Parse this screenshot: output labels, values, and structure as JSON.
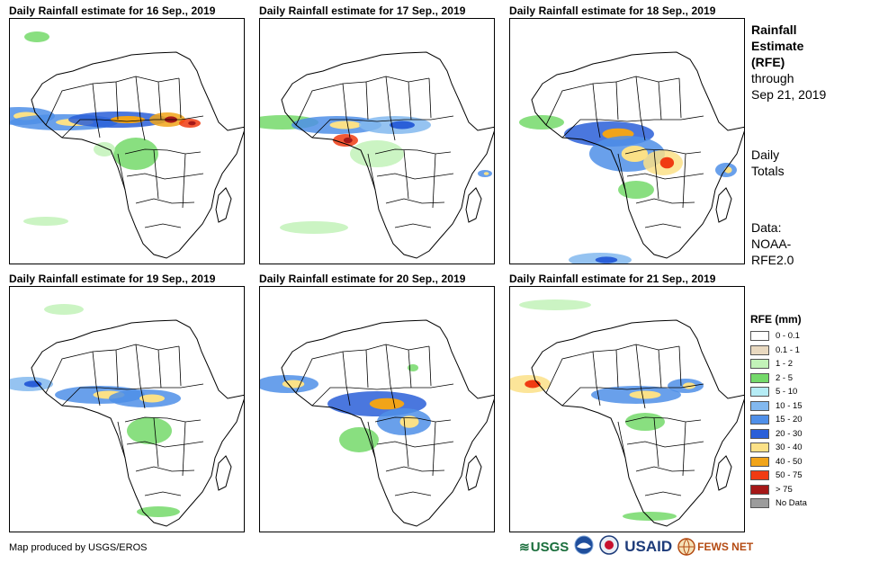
{
  "panels": [
    {
      "title": "Daily Rainfall estimate for 16 Sep., 2019"
    },
    {
      "title": "Daily Rainfall estimate for 17 Sep., 2019"
    },
    {
      "title": "Daily Rainfall estimate for 18 Sep., 2019"
    },
    {
      "title": "Daily Rainfall estimate for 19 Sep., 2019"
    },
    {
      "title": "Daily Rainfall estimate for 20 Sep., 2019"
    },
    {
      "title": "Daily Rainfall estimate for 21 Sep., 2019"
    }
  ],
  "side": {
    "title_1": "Rainfall",
    "title_2": "Estimate",
    "title_3": "(RFE)",
    "through": "through",
    "date": "Sep 21, 2019",
    "daily_1": "Daily",
    "daily_2": "Totals",
    "data_1": "Data:",
    "data_2": "NOAA-",
    "data_3": "RFE2.0"
  },
  "legend": {
    "title": "RFE (mm)",
    "items": [
      {
        "label": "0 - 0.1",
        "color": "#ffffff"
      },
      {
        "label": "0.1 - 1",
        "color": "#e9d9c0"
      },
      {
        "label": "1 - 2",
        "color": "#c2f2b8"
      },
      {
        "label": "2 - 5",
        "color": "#74d96a"
      },
      {
        "label": "5 - 10",
        "color": "#b5ecf5"
      },
      {
        "label": "10 - 15",
        "color": "#82b8ef"
      },
      {
        "label": "15 - 20",
        "color": "#4f8fe8"
      },
      {
        "label": "20 - 30",
        "color": "#2a5fd8"
      },
      {
        "label": "30 - 40",
        "color": "#fbe187"
      },
      {
        "label": "40 - 50",
        "color": "#f1a419"
      },
      {
        "label": "50 - 75",
        "color": "#f03b12"
      },
      {
        "label": "> 75",
        "color": "#a51818"
      },
      {
        "label": "No Data",
        "color": "#9c9c9c"
      }
    ]
  },
  "credit": "Map produced by USGS/EROS",
  "logos": {
    "usgs": "USGS",
    "usaid": "USAID",
    "fewsnet": "FEWS NET"
  }
}
